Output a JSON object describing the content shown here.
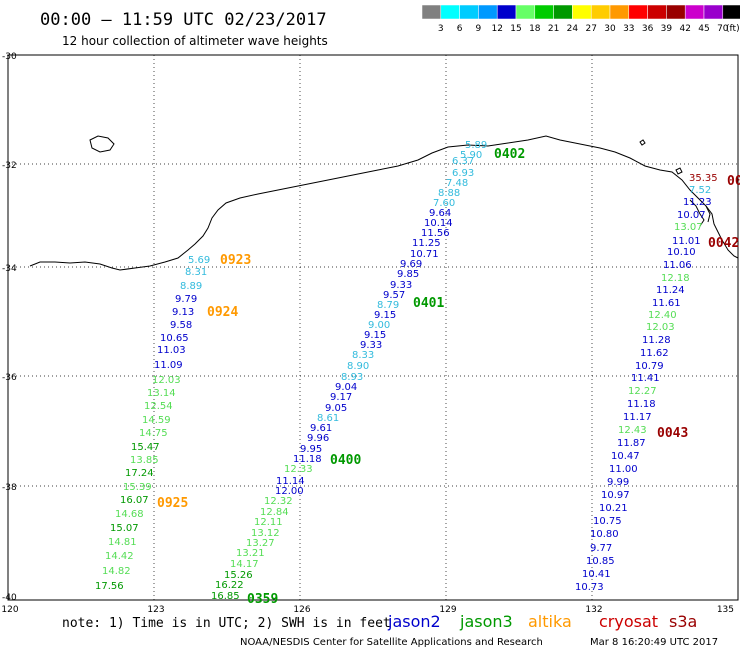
{
  "header": {
    "title": "00:00 – 11:59 UTC 02/23/2017",
    "subtitle": "12 hour collection of altimeter wave heights"
  },
  "legend": {
    "unit": "(ft)",
    "bins": [
      {
        "label": "",
        "color": "#808080"
      },
      {
        "label": "3",
        "color": "#00ffff"
      },
      {
        "label": "6",
        "color": "#00ccff"
      },
      {
        "label": "9",
        "color": "#0099ff"
      },
      {
        "label": "12",
        "color": "#0000cc"
      },
      {
        "label": "15",
        "color": "#66ff66"
      },
      {
        "label": "18",
        "color": "#00cc00"
      },
      {
        "label": "21",
        "color": "#009900"
      },
      {
        "label": "24",
        "color": "#ffff00"
      },
      {
        "label": "27",
        "color": "#ffcc00"
      },
      {
        "label": "30",
        "color": "#ff9900"
      },
      {
        "label": "33",
        "color": "#ff0000"
      },
      {
        "label": "36",
        "color": "#cc0000"
      },
      {
        "label": "39",
        "color": "#990000"
      },
      {
        "label": "42",
        "color": "#cc00cc"
      },
      {
        "label": "45",
        "color": "#9900cc"
      },
      {
        "label": "70",
        "color": "#000000"
      }
    ]
  },
  "axes": {
    "lat_labels": [
      "-30",
      "-32",
      "-34",
      "-36",
      "-38",
      "-40"
    ],
    "lon_labels": [
      "120",
      "123",
      "126",
      "129",
      "132",
      "135"
    ],
    "grid": "dotted"
  },
  "satellites": [
    {
      "name": "jason2",
      "color": "#0000cc"
    },
    {
      "name": "jason3",
      "color": "#009900"
    },
    {
      "name": "altika",
      "color": "#ff9900"
    },
    {
      "name": "cryosat",
      "color": "#cc0000"
    },
    {
      "name": "s3a",
      "color": "#990000"
    }
  ],
  "footer": {
    "note": "note: 1) Time is in UTC; 2) SWH is in feet",
    "credit": "NOAA/NESDIS Center for Satellite Applications and Research",
    "timestamp": "Mar  8 16:20:49 UTC 2017"
  },
  "colors": {
    "cyan": "#33bbdd",
    "blue": "#0000cc",
    "lightgreen": "#55dd55",
    "green": "#009900",
    "orange": "#ff9900",
    "darkred": "#990000",
    "coast": "#000000"
  },
  "tracks": [
    {
      "id": "track-0923-0925",
      "readings": [
        {
          "v": "5.69",
          "c": "cyan"
        },
        {
          "v": "8.31",
          "c": "cyan"
        },
        {
          "v": "8.89",
          "c": "cyan"
        },
        {
          "v": "9.79",
          "c": "blue"
        },
        {
          "v": "9.13",
          "c": "blue"
        },
        {
          "v": "9.58",
          "c": "blue"
        },
        {
          "v": "10.65",
          "c": "blue"
        },
        {
          "v": "11.03",
          "c": "blue"
        },
        {
          "v": "11.09",
          "c": "blue"
        },
        {
          "v": "12.03",
          "c": "lightgreen"
        },
        {
          "v": "13.14",
          "c": "lightgreen"
        },
        {
          "v": "12.54",
          "c": "lightgreen"
        },
        {
          "v": "14.59",
          "c": "lightgreen"
        },
        {
          "v": "14.75",
          "c": "lightgreen"
        },
        {
          "v": "15.47",
          "c": "green"
        },
        {
          "v": "13.85",
          "c": "lightgreen"
        },
        {
          "v": "17.24",
          "c": "green"
        },
        {
          "v": "15.39",
          "c": "lightgreen"
        },
        {
          "v": "16.07",
          "c": "green"
        },
        {
          "v": "14.68",
          "c": "lightgreen"
        },
        {
          "v": "15.07",
          "c": "green"
        },
        {
          "v": "14.81",
          "c": "lightgreen"
        },
        {
          "v": "14.42",
          "c": "lightgreen"
        },
        {
          "v": "14.82",
          "c": "lightgreen"
        },
        {
          "v": "17.56",
          "c": "green"
        }
      ],
      "time_labels": [
        {
          "t": "0923",
          "c": "orange"
        },
        {
          "t": "0924",
          "c": "orange"
        },
        {
          "t": "0925",
          "c": "orange"
        }
      ]
    },
    {
      "id": "track-0359-0402",
      "readings": [
        {
          "v": "5.89",
          "c": "cyan"
        },
        {
          "v": "5.90",
          "c": "cyan"
        },
        {
          "v": "6.37",
          "c": "cyan"
        },
        {
          "v": "6.93",
          "c": "cyan"
        },
        {
          "v": "7.48",
          "c": "cyan"
        },
        {
          "v": "8.88",
          "c": "cyan"
        },
        {
          "v": "7.60",
          "c": "cyan"
        },
        {
          "v": "9.64",
          "c": "blue"
        },
        {
          "v": "10.14",
          "c": "blue"
        },
        {
          "v": "11.56",
          "c": "blue"
        },
        {
          "v": "11.25",
          "c": "blue"
        },
        {
          "v": "10.71",
          "c": "blue"
        },
        {
          "v": "9.69",
          "c": "blue"
        },
        {
          "v": "9.85",
          "c": "blue"
        },
        {
          "v": "9.33",
          "c": "blue"
        },
        {
          "v": "9.57",
          "c": "blue"
        },
        {
          "v": "8.79",
          "c": "cyan"
        },
        {
          "v": "9.15",
          "c": "blue"
        },
        {
          "v": "9.00",
          "c": "cyan"
        },
        {
          "v": "9.15",
          "c": "blue"
        },
        {
          "v": "9.33",
          "c": "blue"
        },
        {
          "v": "8.33",
          "c": "cyan"
        },
        {
          "v": "8.90",
          "c": "cyan"
        },
        {
          "v": "8.93",
          "c": "cyan"
        },
        {
          "v": "9.04",
          "c": "blue"
        },
        {
          "v": "9.17",
          "c": "blue"
        },
        {
          "v": "9.05",
          "c": "blue"
        },
        {
          "v": "8.61",
          "c": "cyan"
        },
        {
          "v": "9.61",
          "c": "blue"
        },
        {
          "v": "9.96",
          "c": "blue"
        },
        {
          "v": "9.95",
          "c": "blue"
        },
        {
          "v": "11.18",
          "c": "blue"
        },
        {
          "v": "12.33",
          "c": "lightgreen"
        },
        {
          "v": "11.14",
          "c": "blue"
        },
        {
          "v": "12.00",
          "c": "blue"
        },
        {
          "v": "12.32",
          "c": "lightgreen"
        },
        {
          "v": "12.84",
          "c": "lightgreen"
        },
        {
          "v": "12.11",
          "c": "lightgreen"
        },
        {
          "v": "13.12",
          "c": "lightgreen"
        },
        {
          "v": "13.27",
          "c": "lightgreen"
        },
        {
          "v": "13.21",
          "c": "lightgreen"
        },
        {
          "v": "14.17",
          "c": "lightgreen"
        },
        {
          "v": "15.26",
          "c": "green"
        },
        {
          "v": "16.22",
          "c": "green"
        },
        {
          "v": "16.85",
          "c": "green"
        }
      ],
      "time_labels": [
        {
          "t": "0402",
          "c": "green"
        },
        {
          "t": "0401",
          "c": "green"
        },
        {
          "t": "0400",
          "c": "green"
        },
        {
          "t": "0359",
          "c": "green"
        }
      ]
    },
    {
      "id": "track-0042-0043",
      "readings": [
        {
          "v": "35.35",
          "c": "darkred"
        },
        {
          "v": "7.52",
          "c": "cyan"
        },
        {
          "v": "11.23",
          "c": "blue"
        },
        {
          "v": "10.07",
          "c": "blue"
        },
        {
          "v": "13.07",
          "c": "lightgreen"
        },
        {
          "v": "11.01",
          "c": "blue"
        },
        {
          "v": "10.10",
          "c": "blue"
        },
        {
          "v": "11.06",
          "c": "blue"
        },
        {
          "v": "12.18",
          "c": "lightgreen"
        },
        {
          "v": "11.24",
          "c": "blue"
        },
        {
          "v": "11.61",
          "c": "blue"
        },
        {
          "v": "12.40",
          "c": "lightgreen"
        },
        {
          "v": "12.03",
          "c": "lightgreen"
        },
        {
          "v": "11.28",
          "c": "blue"
        },
        {
          "v": "11.62",
          "c": "blue"
        },
        {
          "v": "10.79",
          "c": "blue"
        },
        {
          "v": "11.41",
          "c": "blue"
        },
        {
          "v": "12.27",
          "c": "lightgreen"
        },
        {
          "v": "11.18",
          "c": "blue"
        },
        {
          "v": "11.17",
          "c": "blue"
        },
        {
          "v": "12.43",
          "c": "lightgreen"
        },
        {
          "v": "11.87",
          "c": "blue"
        },
        {
          "v": "10.47",
          "c": "blue"
        },
        {
          "v": "11.00",
          "c": "blue"
        },
        {
          "v": "9.99",
          "c": "blue"
        },
        {
          "v": "10.97",
          "c": "blue"
        },
        {
          "v": "10.21",
          "c": "blue"
        },
        {
          "v": "10.75",
          "c": "blue"
        },
        {
          "v": "10.80",
          "c": "blue"
        },
        {
          "v": "9.77",
          "c": "blue"
        },
        {
          "v": "10.85",
          "c": "blue"
        },
        {
          "v": "10.41",
          "c": "blue"
        },
        {
          "v": "10.73",
          "c": "blue"
        }
      ],
      "time_labels": [
        {
          "t": "00",
          "c": "darkred"
        },
        {
          "t": "0042",
          "c": "darkred"
        },
        {
          "t": "0043",
          "c": "darkred"
        }
      ]
    }
  ]
}
